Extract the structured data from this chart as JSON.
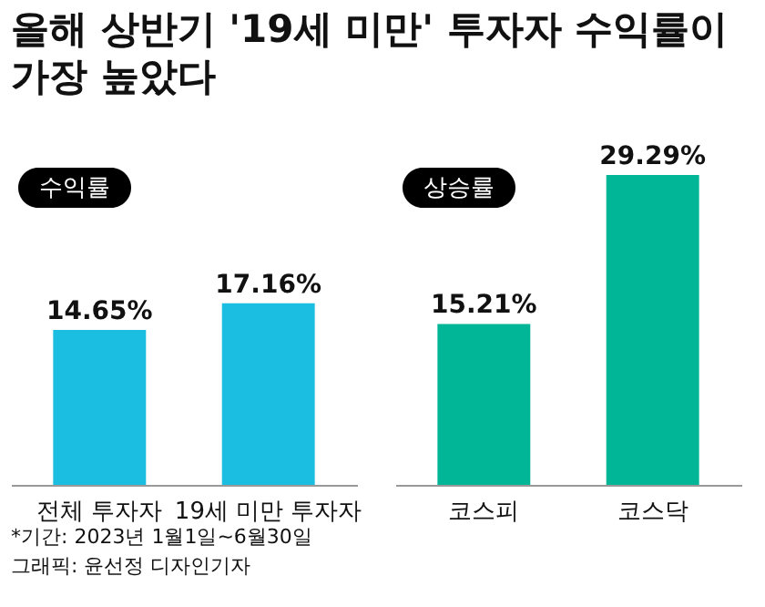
{
  "chart_data": [
    {
      "type": "bar",
      "title": "올해 상반기 '19세 미만' 투자자 수익률이\n가장 높았다",
      "subtitle": "수익률",
      "categories": [
        "전체 투자자",
        "19세 미만 투자자"
      ],
      "values": [
        14.65,
        17.16
      ],
      "value_labels": [
        "14.65%",
        "17.16%"
      ],
      "color": "#1bbde0",
      "tick_labels": "x",
      "grid": false,
      "annotations": [
        "*기간: 2023년 1월1일~6월30일",
        "그래픽: 윤선정 디자인기자"
      ]
    },
    {
      "type": "bar",
      "subtitle": "상승률",
      "categories": [
        "코스피",
        "코스닥"
      ],
      "values": [
        15.21,
        29.29
      ],
      "value_labels": [
        "15.21%",
        "29.29%"
      ],
      "color": "#00b697",
      "tick_labels": "x",
      "grid": false
    }
  ]
}
